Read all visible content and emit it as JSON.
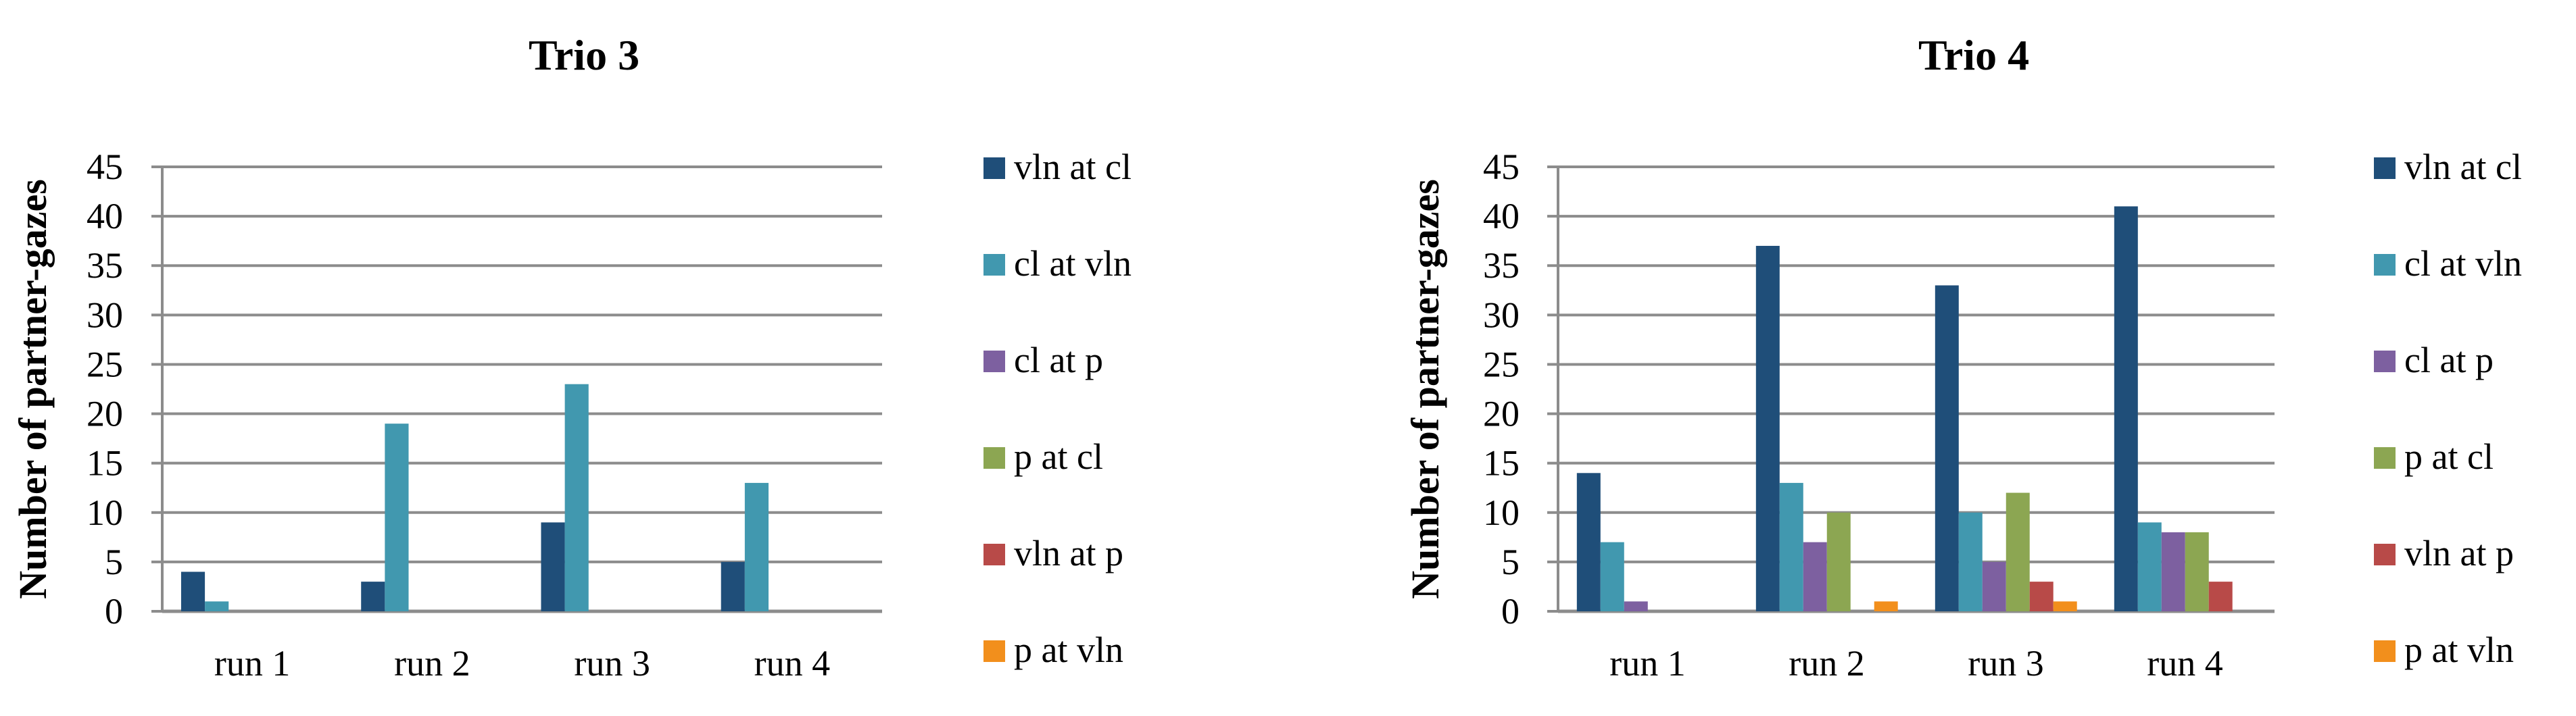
{
  "chart_data": [
    {
      "type": "bar",
      "title": "Trio 3",
      "ylabel": "Number of partner-gazes",
      "xlabel": "",
      "ylim": [
        0,
        45
      ],
      "yticks": [
        0,
        5,
        10,
        15,
        20,
        25,
        30,
        35,
        40,
        45
      ],
      "grid": true,
      "legend_position": "right",
      "categories": [
        "run 1",
        "run 2",
        "run 3",
        "run 4"
      ],
      "series": [
        {
          "name": "vln at cl",
          "color": "#1F4E79",
          "values": [
            4,
            3,
            9,
            5
          ]
        },
        {
          "name": "cl at vln",
          "color": "#4198AF",
          "values": [
            1,
            19,
            23,
            13
          ]
        },
        {
          "name": "cl at p",
          "color": "#7D60A0",
          "values": [
            0,
            0,
            0,
            0
          ]
        },
        {
          "name": "p at cl",
          "color": "#8CA652",
          "values": [
            0,
            0,
            0,
            0
          ]
        },
        {
          "name": "vln at p",
          "color": "#B84A48",
          "values": [
            0,
            0,
            0,
            0
          ]
        },
        {
          "name": "p at vln",
          "color": "#F28F1C",
          "values": [
            0,
            0,
            0,
            0
          ]
        }
      ]
    },
    {
      "type": "bar",
      "title": "Trio 4",
      "ylabel": "Number of partner-gazes",
      "xlabel": "",
      "ylim": [
        0,
        45
      ],
      "yticks": [
        0,
        5,
        10,
        15,
        20,
        25,
        30,
        35,
        40,
        45
      ],
      "grid": true,
      "legend_position": "right",
      "categories": [
        "run 1",
        "run 2",
        "run 3",
        "run 4"
      ],
      "series": [
        {
          "name": "vln at cl",
          "color": "#1F4E79",
          "values": [
            14,
            37,
            33,
            41
          ]
        },
        {
          "name": "cl at vln",
          "color": "#4198AF",
          "values": [
            7,
            13,
            10,
            9
          ]
        },
        {
          "name": "cl at p",
          "color": "#7D60A0",
          "values": [
            1,
            7,
            5,
            8
          ]
        },
        {
          "name": "p at cl",
          "color": "#8CA652",
          "values": [
            0,
            10,
            12,
            8
          ]
        },
        {
          "name": "vln at p",
          "color": "#B84A48",
          "values": [
            0,
            0,
            3,
            3
          ]
        },
        {
          "name": "p at vln",
          "color": "#F28F1C",
          "values": [
            0,
            1,
            1,
            0
          ]
        }
      ]
    }
  ]
}
